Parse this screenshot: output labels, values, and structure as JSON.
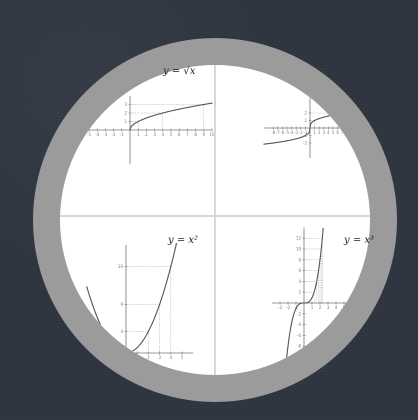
{
  "colors": {
    "background": "#2f3540",
    "ring": "#9b9b9b",
    "panel": "#ffffff",
    "divider": "#d7d7d7",
    "axis": "#777777",
    "curve": "#555555",
    "guide": "#9a9a9a"
  },
  "chart_data": [
    {
      "type": "line",
      "panel": "top-left",
      "title": "y = √x",
      "function": "sqrt",
      "xlim": [
        -9,
        10
      ],
      "ylim": [
        -4,
        4
      ],
      "x": [
        0,
        0.25,
        1,
        2,
        4,
        6,
        9,
        10
      ],
      "y": [
        0,
        0.5,
        1,
        1.41,
        2,
        2.45,
        3,
        3.16
      ],
      "xticks": [
        -9,
        -8,
        -7,
        -6,
        -5,
        -4,
        -3,
        -2,
        -1,
        1,
        2,
        3,
        4,
        5,
        6,
        7,
        8,
        9,
        10
      ],
      "yticks": [
        1,
        2,
        3
      ]
    },
    {
      "type": "line",
      "panel": "top-right",
      "title": "",
      "function": "cbrt",
      "xlim": [
        -10,
        10
      ],
      "ylim": [
        -4,
        4
      ],
      "x": [
        -10,
        -8,
        -5,
        -2,
        -1,
        -0.3,
        0,
        0.3,
        1,
        2,
        5,
        8,
        10
      ],
      "y": [
        -2.15,
        -2,
        -1.71,
        -1.26,
        -1,
        -0.67,
        0,
        0.67,
        1,
        1.26,
        1.71,
        2,
        2.15
      ],
      "xticks": [
        -8,
        -7,
        -6,
        -5,
        -4,
        -3,
        -2,
        -1,
        1,
        2,
        3,
        4,
        5,
        6,
        7,
        8
      ],
      "yticks": [
        -2,
        -1,
        1,
        2
      ]
    },
    {
      "type": "line",
      "panel": "bottom-left",
      "title": "y = x²",
      "function": "square",
      "xlim": [
        -4,
        6
      ],
      "ylim": [
        -1,
        20
      ],
      "x": [
        -3.5,
        -3,
        -2,
        -1,
        0,
        1,
        2,
        3,
        4,
        4.5
      ],
      "y": [
        12.25,
        9,
        4,
        1,
        0,
        1,
        4,
        9,
        16,
        20.25
      ],
      "xticks": [
        -3,
        -2,
        -1,
        1,
        2,
        3,
        4,
        5
      ],
      "yticks": [
        4,
        9,
        16
      ]
    },
    {
      "type": "line",
      "panel": "bottom-right",
      "title": "y = x³",
      "function": "cube",
      "xlim": [
        -4,
        6
      ],
      "ylim": [
        -14,
        14
      ],
      "x": [
        -2.4,
        -2,
        -1.5,
        -1,
        -0.5,
        0,
        0.5,
        1,
        1.5,
        2,
        2.4
      ],
      "y": [
        -13.8,
        -8,
        -3.38,
        -1,
        -0.13,
        0,
        0.13,
        1,
        3.38,
        8,
        13.8
      ],
      "xticks": [
        -3,
        -2,
        -1,
        1,
        2,
        3,
        4,
        5
      ],
      "yticks": [
        -12,
        -10,
        -8,
        -6,
        -4,
        -2,
        2,
        4,
        6,
        8,
        10,
        12
      ]
    }
  ]
}
